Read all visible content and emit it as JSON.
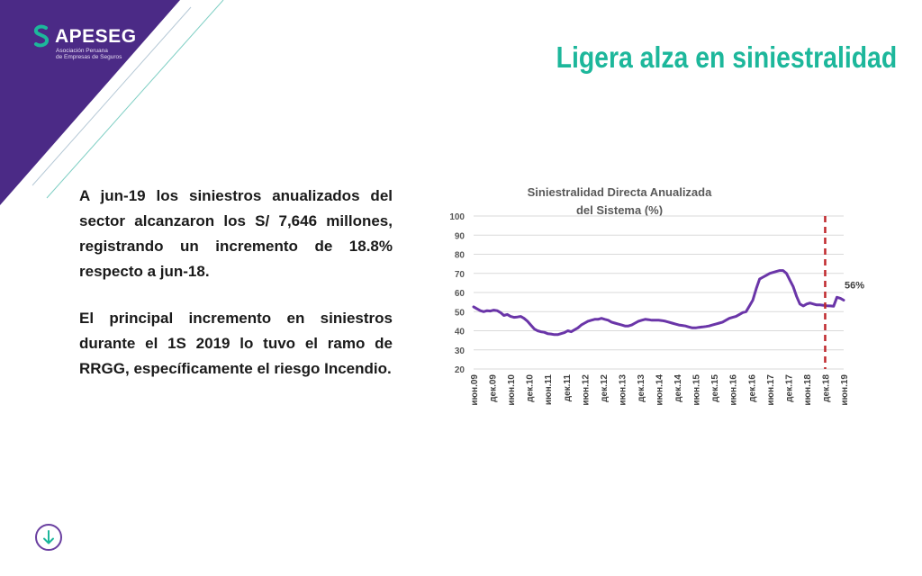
{
  "header": {
    "logo_name": "APESEG",
    "logo_sub_line1": "Asociación Peruana",
    "logo_sub_line2": "de Empresas de Seguros",
    "title": "Ligera alza en siniestralidad"
  },
  "body": {
    "paragraph1": "A jun-19 los siniestros anualizados del sector alcanzaron los S/ 7,646 millones, registrando un incremento de 18.8% respecto a jun-18.",
    "paragraph2": "El principal incremento en siniestros durante el 1S 2019 lo tuvo el ramo de RRGG, específicamente el riesgo Incendio."
  },
  "colors": {
    "brand_purple": "#4b2a86",
    "accent_teal": "#1db79b",
    "series_color": "#6a35a8",
    "marker_color": "#c0282d"
  },
  "nav": {
    "icon": "arrow-down-circle-icon"
  },
  "chart_data": {
    "type": "line",
    "title_line1": "Siniestralidad Directa Anualizada",
    "title_line2": "del Sistema (%)",
    "ylim": [
      20,
      100
    ],
    "yticks": [
      20,
      30,
      40,
      50,
      60,
      70,
      80,
      90,
      100
    ],
    "x_tick_labels": [
      "июн.09",
      "дек.09",
      "июн.10",
      "дек.10",
      "июн.11",
      "дек.11",
      "июн.12",
      "дек.12",
      "июн.13",
      "дек.13",
      "июн.14",
      "дек.14",
      "июн.15",
      "дек.15",
      "июн.16",
      "дек.16",
      "июн.17",
      "дек.17",
      "июн.18",
      "дек.18",
      "июн.19"
    ],
    "grid": true,
    "marker_label": "дек.18",
    "annotation": "56%",
    "series": [
      {
        "values": [
          52.5,
          51.5,
          50.5,
          50,
          50.5,
          50.3,
          50.8,
          50.5,
          49.5,
          48,
          48.5,
          47.5,
          47,
          47.2,
          47.5,
          46.5,
          45,
          43,
          41,
          40,
          39.5,
          39.2,
          38.5,
          38.3,
          38,
          38,
          38.5,
          39,
          40,
          39.5,
          40.5,
          41.5,
          43,
          44,
          45,
          45.5,
          46,
          46,
          46.5,
          46,
          45.5,
          44.5,
          44,
          43.5,
          43,
          42.5,
          42.5,
          43,
          44,
          45,
          45.5,
          46,
          45.8,
          45.5,
          45.5,
          45.5,
          45.3,
          45,
          44.5,
          44,
          43.5,
          43,
          42.8,
          42.5,
          42,
          41.5,
          41.5,
          41.8,
          42,
          42.2,
          42.5,
          43,
          43.5,
          44,
          44.5,
          45.5,
          46.5,
          47,
          47.5,
          48.5,
          49.5,
          50,
          53,
          56,
          62,
          67,
          68,
          69,
          70,
          70.5,
          71,
          71.5,
          71.5,
          70,
          66.5,
          63,
          58,
          54,
          53,
          54,
          54.5,
          54,
          53.5,
          53.5,
          53.3,
          53.1,
          53,
          52.8,
          57.5,
          57,
          56
        ]
      }
    ]
  }
}
